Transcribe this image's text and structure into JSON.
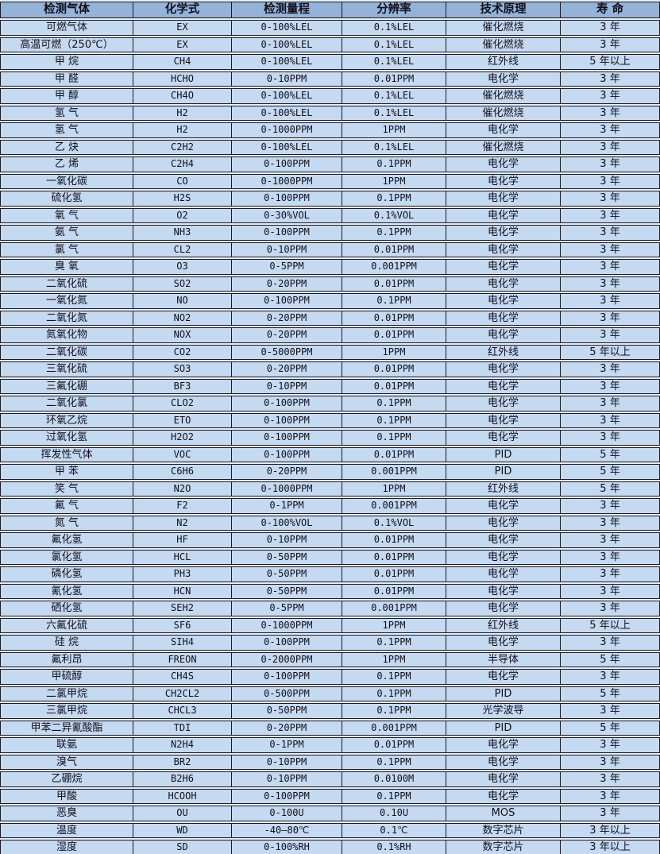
{
  "colors": {
    "header_bg": "#95b3d7",
    "row_bg": "#c5d9f1",
    "border": "#1a1a24",
    "gap_bg": "#e9eff8",
    "text": "#10101c"
  },
  "table": {
    "columns": [
      "检测气体",
      "化学式",
      "检测量程",
      "分辨率",
      "技术原理",
      "寿 命"
    ],
    "rows": [
      [
        "可燃气体",
        "EX",
        "0-100%LEL",
        "0.1%LEL",
        "催化燃烧",
        "3 年"
      ],
      [
        "高温可燃（250℃）",
        "EX",
        "0-100%LEL",
        "0.1%LEL",
        "催化燃烧",
        "3 年"
      ],
      [
        "甲 烷",
        "CH4",
        "0-100%LEL",
        "0.1%LEL",
        "红外线",
        "5 年以上"
      ],
      [
        "甲 醛",
        "HCHO",
        "0-10PPM",
        "0.01PPM",
        "电化学",
        "3 年"
      ],
      [
        "甲 醇",
        "CH4O",
        "0-100%LEL",
        "0.1%LEL",
        "催化燃烧",
        "3 年"
      ],
      [
        "氢 气",
        "H2",
        "0-100%LEL",
        "0.1%LEL",
        "催化燃烧",
        "3 年"
      ],
      [
        "氢 气",
        "H2",
        "0-1000PPM",
        "1PPM",
        "电化学",
        "3 年"
      ],
      [
        "乙 炔",
        "C2H2",
        "0-100%LEL",
        "0.1%LEL",
        "催化燃烧",
        "3 年"
      ],
      [
        "乙 烯",
        "C2H4",
        "0-100PPM",
        "0.1PPM",
        "电化学",
        "3 年"
      ],
      [
        "一氧化碳",
        "CO",
        "0-1000PPM",
        "1PPM",
        "电化学",
        "3 年"
      ],
      [
        "硫化氢",
        "H2S",
        "0-100PPM",
        "0.1PPM",
        "电化学",
        "3 年"
      ],
      [
        "氧 气",
        "O2",
        "0-30%VOL",
        "0.1%VOL",
        "电化学",
        "3 年"
      ],
      [
        "氨 气",
        "NH3",
        "0-100PPM",
        "0.1PPM",
        "电化学",
        "3 年"
      ],
      [
        "氯 气",
        "CL2",
        "0-10PPM",
        "0.01PPM",
        "电化学",
        "3 年"
      ],
      [
        "臭 氧",
        "O3",
        "0-5PPM",
        "0.001PPM",
        "电化学",
        "3 年"
      ],
      [
        "二氧化硫",
        "SO2",
        "0-20PPM",
        "0.01PPM",
        "电化学",
        "3 年"
      ],
      [
        "一氧化氮",
        "NO",
        "0-100PPM",
        "0.1PPM",
        "电化学",
        "3 年"
      ],
      [
        "二氧化氮",
        "NO2",
        "0-20PPM",
        "0.01PPM",
        "电化学",
        "3 年"
      ],
      [
        "氮氧化物",
        "NOX",
        "0-20PPM",
        "0.01PPM",
        "电化学",
        "3 年"
      ],
      [
        "二氧化碳",
        "CO2",
        "0-5000PPM",
        "1PPM",
        "红外线",
        "5 年以上"
      ],
      [
        "三氧化硫",
        "SO3",
        "0-20PPM",
        "0.01PPM",
        "电化学",
        "3 年"
      ],
      [
        "三氟化硼",
        "BF3",
        "0-10PPM",
        "0.01PPM",
        "电化学",
        "3 年"
      ],
      [
        "二氧化氯",
        "CLO2",
        "0-100PPM",
        "0.1PPM",
        "电化学",
        "3 年"
      ],
      [
        "环氧乙烷",
        "ETO",
        "0-100PPM",
        "0.1PPM",
        "电化学",
        "3 年"
      ],
      [
        "过氧化氢",
        "H2O2",
        "0-100PPM",
        "0.1PPM",
        "电化学",
        "3 年"
      ],
      [
        "挥发性气体",
        "VOC",
        "0-100PPM",
        "0.01PPM",
        "PID",
        "5 年"
      ],
      [
        "甲 苯",
        "C6H6",
        "0-20PPM",
        "0.001PPM",
        "PID",
        "5 年"
      ],
      [
        "笑 气",
        "N2O",
        "0-1000PPM",
        "1PPM",
        "红外线",
        "5 年"
      ],
      [
        "氟 气",
        "F2",
        "0-1PPM",
        "0.001PPM",
        "电化学",
        "3 年"
      ],
      [
        "氮 气",
        "N2",
        "0-100%VOL",
        "0.1%VOL",
        "电化学",
        "3 年"
      ],
      [
        "氟化氢",
        "HF",
        "0-10PPM",
        "0.01PPM",
        "电化学",
        "3 年"
      ],
      [
        "氯化氢",
        "HCL",
        "0-50PPM",
        "0.01PPM",
        "电化学",
        "3 年"
      ],
      [
        "磷化氢",
        "PH3",
        "0-50PPM",
        "0.01PPM",
        "电化学",
        "3 年"
      ],
      [
        "氰化氢",
        "HCN",
        "0-50PPM",
        "0.01PPM",
        "电化学",
        "3 年"
      ],
      [
        "硒化氢",
        "SEH2",
        "0-5PPM",
        "0.001PPM",
        "电化学",
        "3 年"
      ],
      [
        "六氟化硫",
        "SF6",
        "0-1000PPM",
        "1PPM",
        "红外线",
        "5 年以上"
      ],
      [
        "硅 烷",
        "SIH4",
        "0-100PPM",
        "0.1PPM",
        "电化学",
        "3 年"
      ],
      [
        "氟利昂",
        "FREON",
        "0-2000PPM",
        "1PPM",
        "半导体",
        "5 年"
      ],
      [
        "甲硫醇",
        "CH4S",
        "0-100PPM",
        "0.1PPM",
        "电化学",
        "3 年"
      ],
      [
        "二氯甲烷",
        "CH2CL2",
        "0-500PPM",
        "0.1PPM",
        "PID",
        "5 年"
      ],
      [
        "三氯甲烷",
        "CHCL3",
        "0-50PPM",
        "0.1PPM",
        "光学波导",
        "3 年"
      ],
      [
        "甲苯二异氰酸酯",
        "TDI",
        "0-20PPM",
        "0.001PPM",
        "PID",
        "5 年"
      ],
      [
        "联氨",
        "N2H4",
        "0-1PPM",
        "0.01PPM",
        "电化学",
        "3 年"
      ],
      [
        "溴气",
        "BR2",
        "0-10PPM",
        "0.1PPM",
        "电化学",
        "3 年"
      ],
      [
        "乙硼烷",
        "B2H6",
        "0-10PPM",
        "0.0100M",
        "电化学",
        "3 年"
      ],
      [
        "甲酸",
        "HCOOH",
        "0-100PPM",
        "0.1PPM",
        "电化学",
        "3 年"
      ],
      [
        "恶臭",
        "OU",
        "0-100U",
        "0.10U",
        "MOS",
        "3 年"
      ],
      [
        "温度",
        "WD",
        "-40—80℃",
        "0.1℃",
        "数字芯片",
        "3 年以上"
      ],
      [
        "湿度",
        "SD",
        "0-100%RH",
        "0.1%RH",
        "数字芯片",
        "3 年以上"
      ]
    ]
  }
}
